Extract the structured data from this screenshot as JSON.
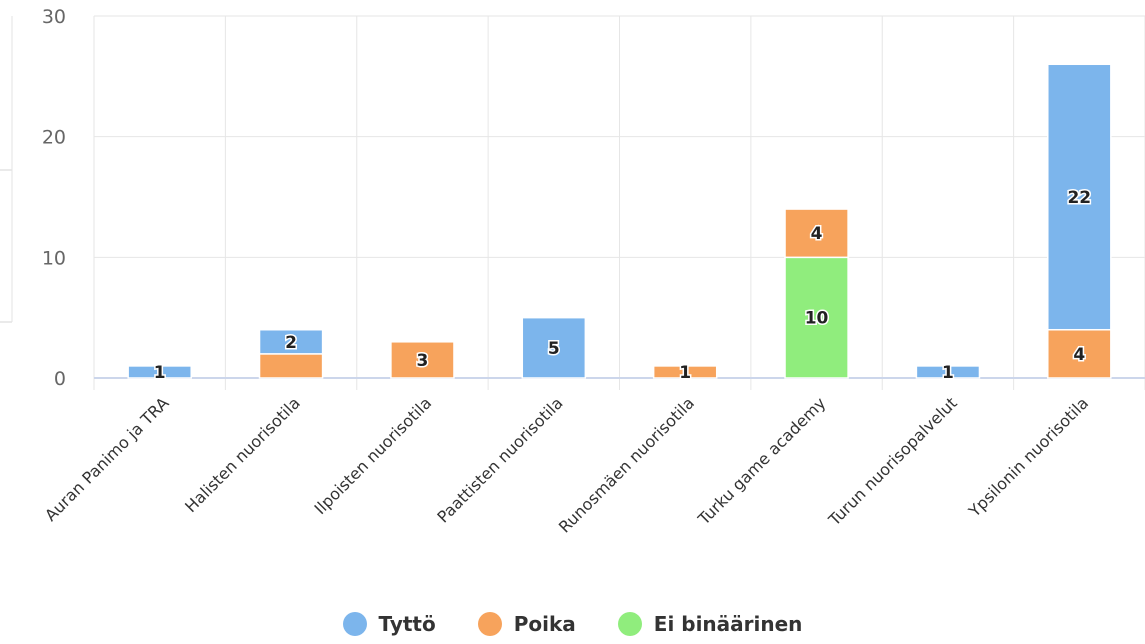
{
  "chart_data": {
    "type": "bar",
    "stacked": true,
    "categories": [
      "Auran Panimo ja TRA",
      "Halisten nuorisotila",
      "Ilpoisten nuorisotila",
      "Paattisten nuorisotila",
      "Runosmäen nuorisotila",
      "Turku game academy",
      "Turun nuorisopalvelut",
      "Ypsilonin nuorisotila"
    ],
    "series": [
      {
        "name": "Ei binäärinen",
        "color": "#90ed7d",
        "values": [
          0,
          0,
          0,
          0,
          0,
          10,
          0,
          0
        ]
      },
      {
        "name": "Poika",
        "color": "#f7a35c",
        "values": [
          0,
          2,
          3,
          0,
          1,
          4,
          0,
          4
        ]
      },
      {
        "name": "Tyttö",
        "color": "#7cb5ec",
        "values": [
          1,
          2,
          0,
          5,
          0,
          0,
          1,
          22
        ]
      }
    ],
    "visible_data_labels": [
      [
        null,
        null,
        null,
        null,
        null,
        "10",
        null,
        null
      ],
      [
        null,
        null,
        "3",
        null,
        "1",
        "4",
        null,
        "4"
      ],
      [
        "1",
        "2",
        null,
        "5",
        null,
        null,
        "1",
        "22"
      ]
    ],
    "y_ticks": [
      "0",
      "10",
      "20",
      "30"
    ],
    "ylim": [
      0,
      30
    ],
    "grid": true,
    "legend_position": "bottom-center",
    "legend": [
      {
        "name": "Tyttö",
        "color": "#7cb5ec"
      },
      {
        "name": "Poika",
        "color": "#f7a35c"
      },
      {
        "name": "Ei binäärinen",
        "color": "#90ed7d"
      }
    ]
  }
}
